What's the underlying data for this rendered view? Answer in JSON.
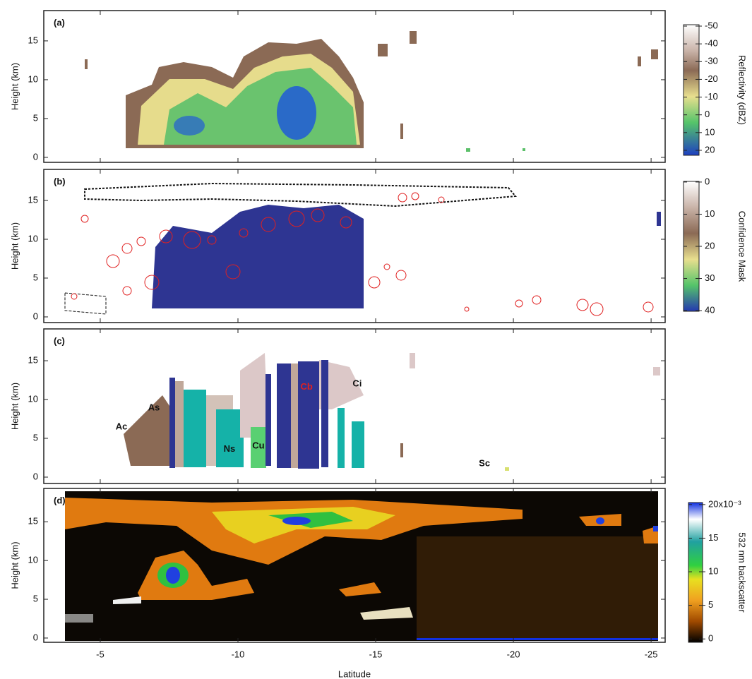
{
  "chart_data": [
    {
      "type": "heatmap",
      "panel_label": "(a)",
      "ylabel": "Height (km)",
      "xlim": [
        -2.95,
        -25.51
      ],
      "ylim": [
        -0.64,
        18.9
      ],
      "xticks": [
        -5,
        -10,
        -15,
        -20,
        -25
      ],
      "yticks": [
        0,
        5,
        10,
        15
      ],
      "colorbar": {
        "label": "Reflectivity (dBZ)",
        "clim": [
          -50.8,
          22.8
        ],
        "ticks": [
          -50,
          -40,
          -30,
          -20,
          -10,
          0,
          10,
          20
        ]
      }
    },
    {
      "type": "heatmap",
      "panel_label": "(b)",
      "ylabel": "Height (km)",
      "xlim": [
        -2.95,
        -25.51
      ],
      "ylim": [
        -0.73,
        19.0
      ],
      "xticks": [
        -5,
        -10,
        -15,
        -20,
        -25
      ],
      "yticks": [
        0,
        5,
        10,
        15
      ],
      "colorbar": {
        "label": "Confidence Mask",
        "clim": [
          -0.2,
          40.2
        ],
        "ticks": [
          0,
          10,
          20,
          30,
          40
        ]
      }
    },
    {
      "type": "heatmap",
      "panel_label": "(c)",
      "ylabel": "Height (km)",
      "xlim": [
        -2.95,
        -25.51
      ],
      "ylim": [
        -0.82,
        19.1
      ],
      "xticks": [
        -5,
        -10,
        -15,
        -20,
        -25
      ],
      "yticks": [
        0,
        5,
        10,
        15
      ],
      "annotations": [
        {
          "text": "Ac",
          "x": -5.77,
          "y": 6.45,
          "color": "#111111"
        },
        {
          "text": "As",
          "x": -6.95,
          "y": 8.9,
          "color": "#111111"
        },
        {
          "text": "Ns",
          "x": -9.69,
          "y": 3.6,
          "color": "#111111"
        },
        {
          "text": "Cu",
          "x": -10.74,
          "y": 4.0,
          "color": "#111111"
        },
        {
          "text": "Cb",
          "x": -12.49,
          "y": 11.6,
          "color": "#e02020"
        },
        {
          "text": "Ci",
          "x": -14.33,
          "y": 12.0,
          "color": "#111111"
        },
        {
          "text": "Sc",
          "x": -18.95,
          "y": 1.7,
          "color": "#111111"
        }
      ]
    },
    {
      "type": "heatmap",
      "panel_label": "(d)",
      "ylabel": "Height (km)",
      "xlabel": "Latitude",
      "xlim": [
        -2.95,
        -25.51
      ],
      "ylim": [
        -0.55,
        19.3
      ],
      "xticks": [
        -5,
        -10,
        -15,
        -20,
        -25
      ],
      "yticks": [
        0,
        5,
        10,
        15
      ],
      "colorbar": {
        "label": "532 nm backscatter",
        "clim": [
          20.3,
          -0.5
        ],
        "ticks": [
          {
            "value": 20,
            "label": "20x10⁻³"
          },
          15,
          10,
          5,
          0
        ]
      }
    }
  ]
}
